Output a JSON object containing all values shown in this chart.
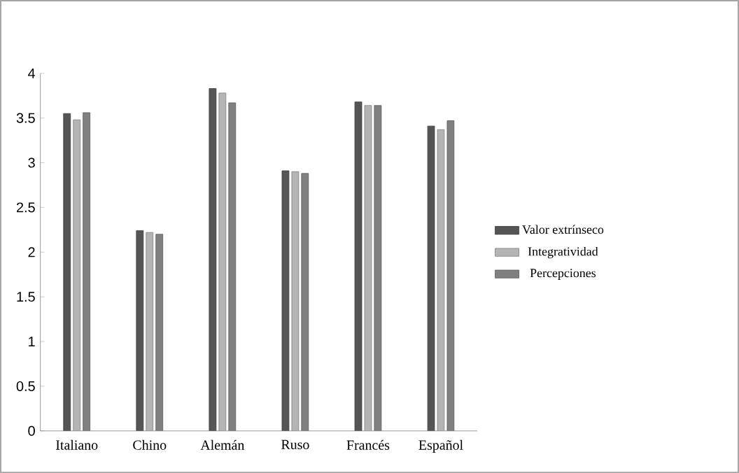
{
  "chart_data": {
    "type": "bar",
    "categories": [
      "Italiano",
      "Chino",
      "Alemán",
      "Ruso",
      "Francés",
      "Español"
    ],
    "series": [
      {
        "name": "Valor extrínseco",
        "color": "#555555",
        "values": [
          3.55,
          2.24,
          3.83,
          2.91,
          3.68,
          3.41
        ]
      },
      {
        "name": "Integratividad",
        "color": "#b4b4b4",
        "values": [
          3.48,
          2.22,
          3.78,
          2.9,
          3.64,
          3.37
        ]
      },
      {
        "name": "Percepciones",
        "color": "#808080",
        "values": [
          3.56,
          2.2,
          3.67,
          2.88,
          3.64,
          3.47
        ]
      }
    ],
    "ylim": [
      0,
      4
    ],
    "yticks": [
      0,
      0.5,
      1,
      1.5,
      2,
      2.5,
      3,
      3.5,
      4
    ],
    "grid": false,
    "legend": "right"
  }
}
